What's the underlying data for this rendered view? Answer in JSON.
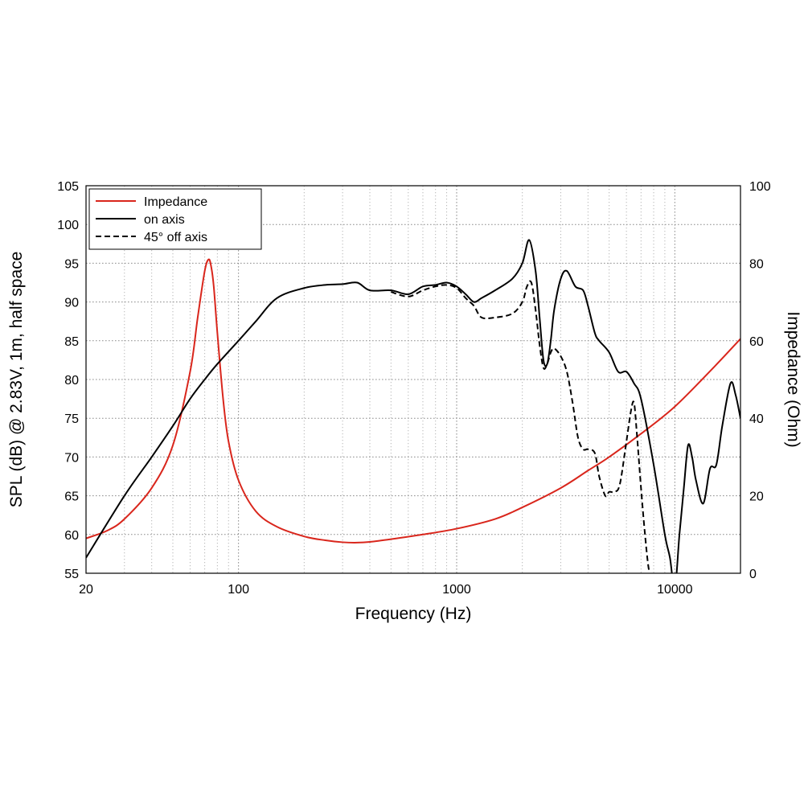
{
  "chart_data": {
    "type": "line",
    "xlabel": "Frequency (Hz)",
    "ylabel": "SPL (dB) @ 2.83V, 1m, half space",
    "y2label": "Impedance (Ohm)",
    "x_scale": "log",
    "xlim": [
      20,
      20000
    ],
    "ylim": [
      55,
      105
    ],
    "y2lim": [
      0,
      100
    ],
    "grid": true,
    "legend_position": "top-left",
    "x_ticks": [
      {
        "value": 20,
        "label": "20"
      },
      {
        "value": 100,
        "label": "100"
      },
      {
        "value": 1000,
        "label": "1000"
      },
      {
        "value": 10000,
        "label": "10000"
      }
    ],
    "y_ticks": [
      "55",
      "60",
      "65",
      "70",
      "75",
      "80",
      "85",
      "90",
      "95",
      "100",
      "105"
    ],
    "y2_ticks": [
      "0",
      "20",
      "40",
      "60",
      "80",
      "100"
    ],
    "series": [
      {
        "name": "Impedance",
        "axis": "right",
        "color": "#d9261c",
        "style": "solid",
        "x": [
          20,
          25,
          30,
          40,
          50,
          60,
          65,
          70,
          73,
          75,
          77,
          80,
          85,
          90,
          100,
          120,
          150,
          200,
          250,
          300,
          350,
          400,
          500,
          700,
          1000,
          1500,
          2000,
          3000,
          4000,
          5000,
          7000,
          10000,
          15000,
          20000
        ],
        "y": [
          9,
          11,
          14,
          22,
          33,
          52,
          66,
          78,
          81,
          79,
          74,
          62,
          45,
          34,
          24,
          16,
          12,
          9.5,
          8.5,
          8.0,
          7.9,
          8.1,
          8.8,
          10,
          11.5,
          14,
          17,
          22,
          26.5,
          30,
          36,
          43,
          53,
          60.5
        ]
      },
      {
        "name": "on axis",
        "axis": "left",
        "color": "#000000",
        "style": "solid",
        "x": [
          20,
          30,
          40,
          50,
          60,
          70,
          80,
          100,
          120,
          150,
          200,
          250,
          300,
          350,
          400,
          500,
          600,
          700,
          800,
          900,
          1000,
          1100,
          1200,
          1300,
          1500,
          1800,
          2000,
          2150,
          2300,
          2400,
          2500,
          2600,
          2700,
          2800,
          3000,
          3200,
          3500,
          3800,
          4000,
          4300,
          4500,
          5000,
          5500,
          6000,
          6500,
          7000,
          8000,
          9000,
          9500,
          10000,
          10500,
          11000,
          11500,
          12000,
          12500,
          13500,
          14500,
          15500,
          16500,
          18000,
          19000,
          20000
        ],
        "y": [
          57,
          65,
          70,
          74,
          77.5,
          80,
          82,
          85,
          87.5,
          90.5,
          91.8,
          92.2,
          92.3,
          92.5,
          91.5,
          91.5,
          91,
          92,
          92.2,
          92.5,
          92,
          91,
          90,
          90.5,
          91.5,
          93,
          95,
          98,
          94,
          88,
          82.5,
          82,
          85,
          89,
          93,
          94,
          92,
          91.5,
          89.5,
          86,
          85,
          83.5,
          81,
          81,
          79.5,
          77.5,
          69,
          60,
          57,
          53,
          60,
          66,
          71.5,
          70,
          67,
          64,
          68.5,
          69,
          74,
          79.5,
          78,
          75
        ]
      },
      {
        "name": "45° off axis",
        "axis": "left",
        "color": "#000000",
        "style": "dashed",
        "x": [
          500,
          600,
          700,
          800,
          900,
          1000,
          1100,
          1200,
          1300,
          1500,
          1800,
          2000,
          2100,
          2200,
          2300,
          2400,
          2500,
          2600,
          2700,
          2800,
          3000,
          3200,
          3400,
          3600,
          3800,
          4000,
          4300,
          4500,
          4800,
          5000,
          5300,
          5600,
          6000,
          6300,
          6500,
          6700,
          7000,
          7300,
          7600,
          8000,
          8500
        ],
        "y": [
          91.3,
          90.7,
          91.5,
          92,
          92.2,
          91.8,
          90.5,
          89.5,
          88,
          88,
          88.5,
          90,
          92,
          92.5,
          89,
          84.5,
          81.5,
          82,
          83.5,
          84,
          83,
          81,
          77,
          72.5,
          71,
          71,
          70.5,
          67.5,
          65,
          65.5,
          65.5,
          66.5,
          72,
          76,
          77,
          73,
          66,
          60,
          55.5,
          53,
          52
        ]
      }
    ]
  }
}
